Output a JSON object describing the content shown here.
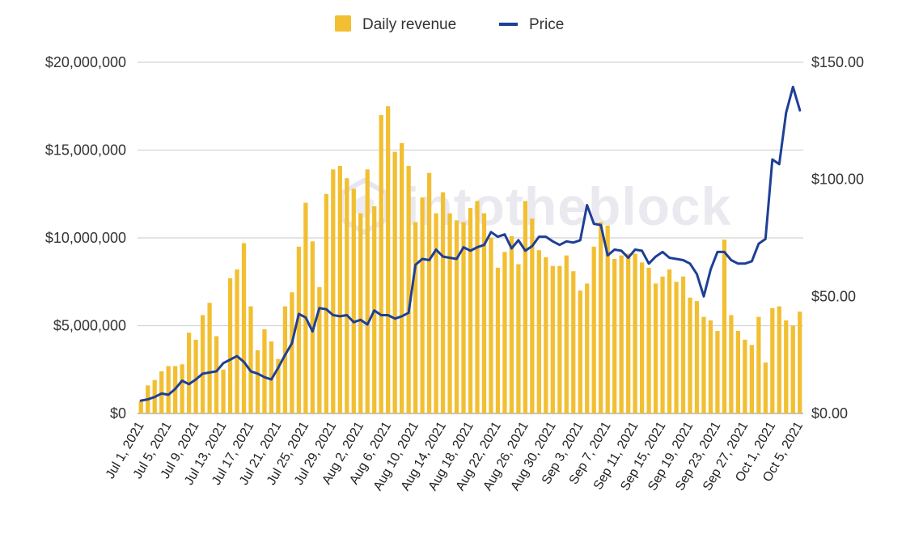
{
  "chart_data": {
    "type": "bar+line",
    "watermark": "intotheblock",
    "legend": {
      "placement": "top-center",
      "items": [
        {
          "name": "Daily revenue",
          "swatch": "square",
          "color": "#F2BF32"
        },
        {
          "name": "Price",
          "swatch": "line",
          "color": "#1E3F96"
        }
      ]
    },
    "grid": true,
    "y_left": {
      "ylim": [
        0,
        20000000
      ],
      "ticks": [
        "$0",
        "$5,000,000",
        "$10,000,000",
        "$15,000,000",
        "$20,000,000"
      ]
    },
    "y_right": {
      "ylim": [
        0,
        150
      ],
      "ticks": [
        "$0.00",
        "$50.00",
        "$100.00",
        "$150.00"
      ]
    },
    "x_tick_labels": [
      "Jul 1, 2021",
      "Jul 5, 2021",
      "Jul 9, 2021",
      "Jul 13, 2021",
      "Jul 17, 2021",
      "Jul 21, 2021",
      "Jul 25, 2021",
      "Jul 29, 2021",
      "Aug 2, 2021",
      "Aug 6, 2021",
      "Aug 10, 2021",
      "Aug 14, 2021",
      "Aug 18, 2021",
      "Aug 22, 2021",
      "Aug 26, 2021",
      "Aug 30, 2021",
      "Sep 3, 2021",
      "Sep 7, 2021",
      "Sep 11, 2021",
      "Sep 15, 2021",
      "Sep 19, 2021",
      "Sep 23, 2021",
      "Sep 27, 2021",
      "Oct 1, 2021",
      "Oct 5, 2021"
    ],
    "x_start": "2021-07-01",
    "x_end": "2021-10-06",
    "series": [
      {
        "name": "Daily revenue",
        "type": "bar",
        "axis": "left",
        "color": "#F2BF32",
        "values": [
          700000,
          1600000,
          1900000,
          2400000,
          2700000,
          2700000,
          2800000,
          4600000,
          4200000,
          5600000,
          6300000,
          4400000,
          2500000,
          7700000,
          8200000,
          9700000,
          6100000,
          3600000,
          4800000,
          4100000,
          3100000,
          6100000,
          6900000,
          9500000,
          12000000,
          9800000,
          7200000,
          12500000,
          13900000,
          14100000,
          13400000,
          12800000,
          11400000,
          13900000,
          11800000,
          17000000,
          17500000,
          14900000,
          15400000,
          14100000,
          10900000,
          12300000,
          13700000,
          11400000,
          12600000,
          11400000,
          11000000,
          10900000,
          11700000,
          12100000,
          11400000,
          10000000,
          8300000,
          9200000,
          10100000,
          8500000,
          12100000,
          11100000,
          9300000,
          8900000,
          8400000,
          8400000,
          9000000,
          8100000,
          7000000,
          7400000,
          9500000,
          10900000,
          10700000,
          8800000,
          9000000,
          9100000,
          9100000,
          8600000,
          8300000,
          7400000,
          7800000,
          8200000,
          7500000,
          7800000,
          6600000,
          6400000,
          5500000,
          5300000,
          4700000,
          9900000,
          5600000,
          4700000,
          4200000,
          3900000,
          5500000,
          2900000,
          6000000,
          6100000,
          5300000,
          5000000,
          5800000
        ]
      },
      {
        "name": "Price",
        "type": "line",
        "axis": "right",
        "color": "#1E3F96",
        "values": [
          5.5,
          6,
          7,
          8.5,
          8,
          10.5,
          14,
          12.5,
          14.5,
          17,
          17.5,
          18,
          21.5,
          23,
          24.5,
          22,
          18,
          17,
          15.5,
          14.5,
          19.5,
          25,
          30,
          42.5,
          41,
          35,
          45,
          44.5,
          42,
          41.5,
          42,
          39,
          40,
          38,
          44,
          42,
          42,
          40.5,
          41.5,
          43,
          63.5,
          66,
          65.5,
          70,
          67,
          66.5,
          66,
          71,
          69.5,
          71,
          72,
          77.5,
          75.5,
          76.5,
          70.5,
          74,
          69.5,
          71.5,
          75.5,
          75.5,
          73.5,
          72,
          73.5,
          73,
          74,
          89,
          81,
          80.5,
          67.5,
          70,
          69.5,
          66.5,
          70,
          69.5,
          64,
          67,
          69,
          66.5,
          66,
          65.5,
          64,
          59.5,
          50,
          61.5,
          69,
          69,
          65.5,
          64,
          64,
          65,
          72.5,
          74.5,
          108.5,
          106.5,
          128.5,
          139.5,
          129.5
        ]
      }
    ]
  }
}
